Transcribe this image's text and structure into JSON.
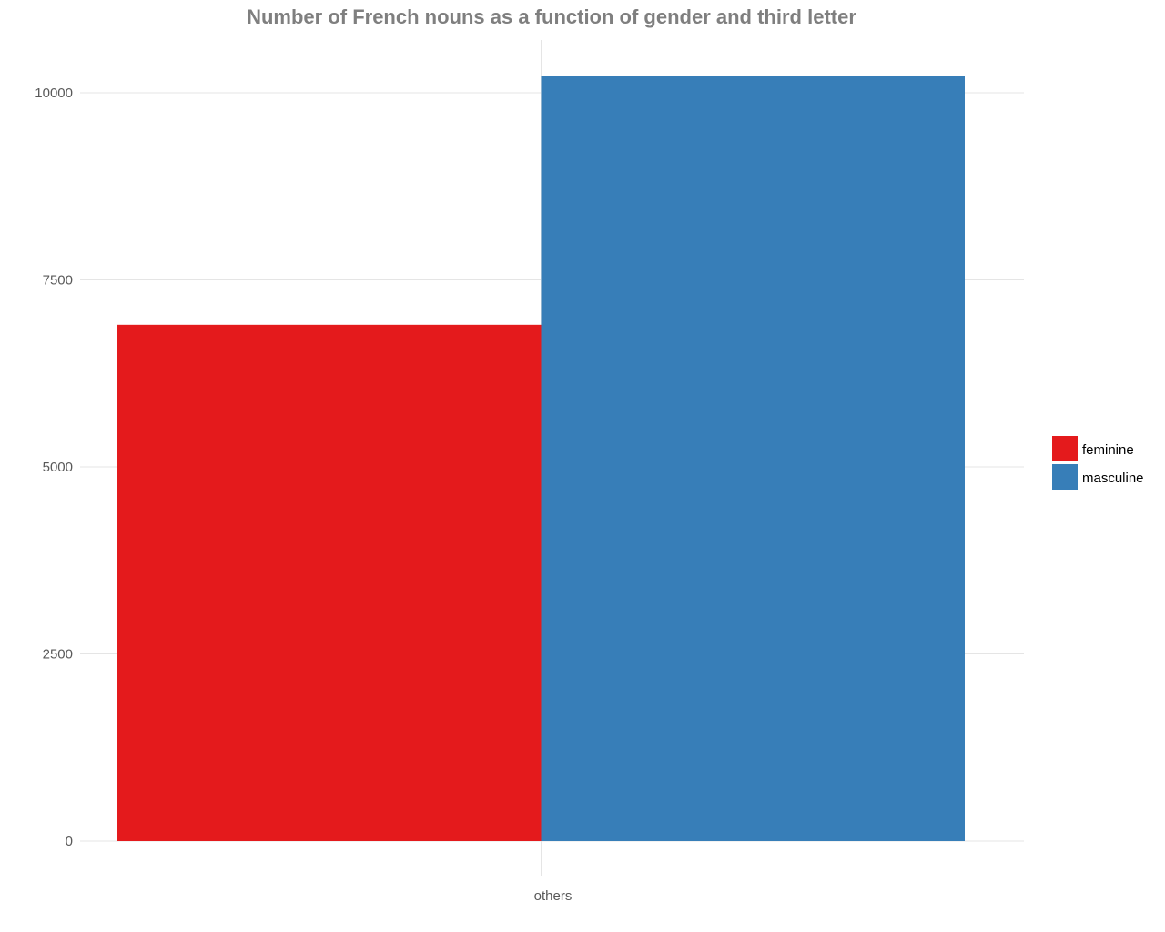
{
  "chart_data": {
    "type": "bar",
    "title": "Number of French nouns as a function of gender and third letter",
    "xlabel": "",
    "ylabel": "",
    "categories": [
      "others"
    ],
    "series": [
      {
        "name": "feminine",
        "values": [
          6900
        ],
        "color": "#e41a1c"
      },
      {
        "name": "masculine",
        "values": [
          10220
        ],
        "color": "#377eb8"
      }
    ],
    "ylim": [
      0,
      10700
    ],
    "yticks": [
      0,
      2500,
      5000,
      7500,
      10000
    ],
    "ytick_labels": [
      "0",
      "2500",
      "5000",
      "7500",
      "10000"
    ],
    "grid": true,
    "legend_position": "right"
  }
}
